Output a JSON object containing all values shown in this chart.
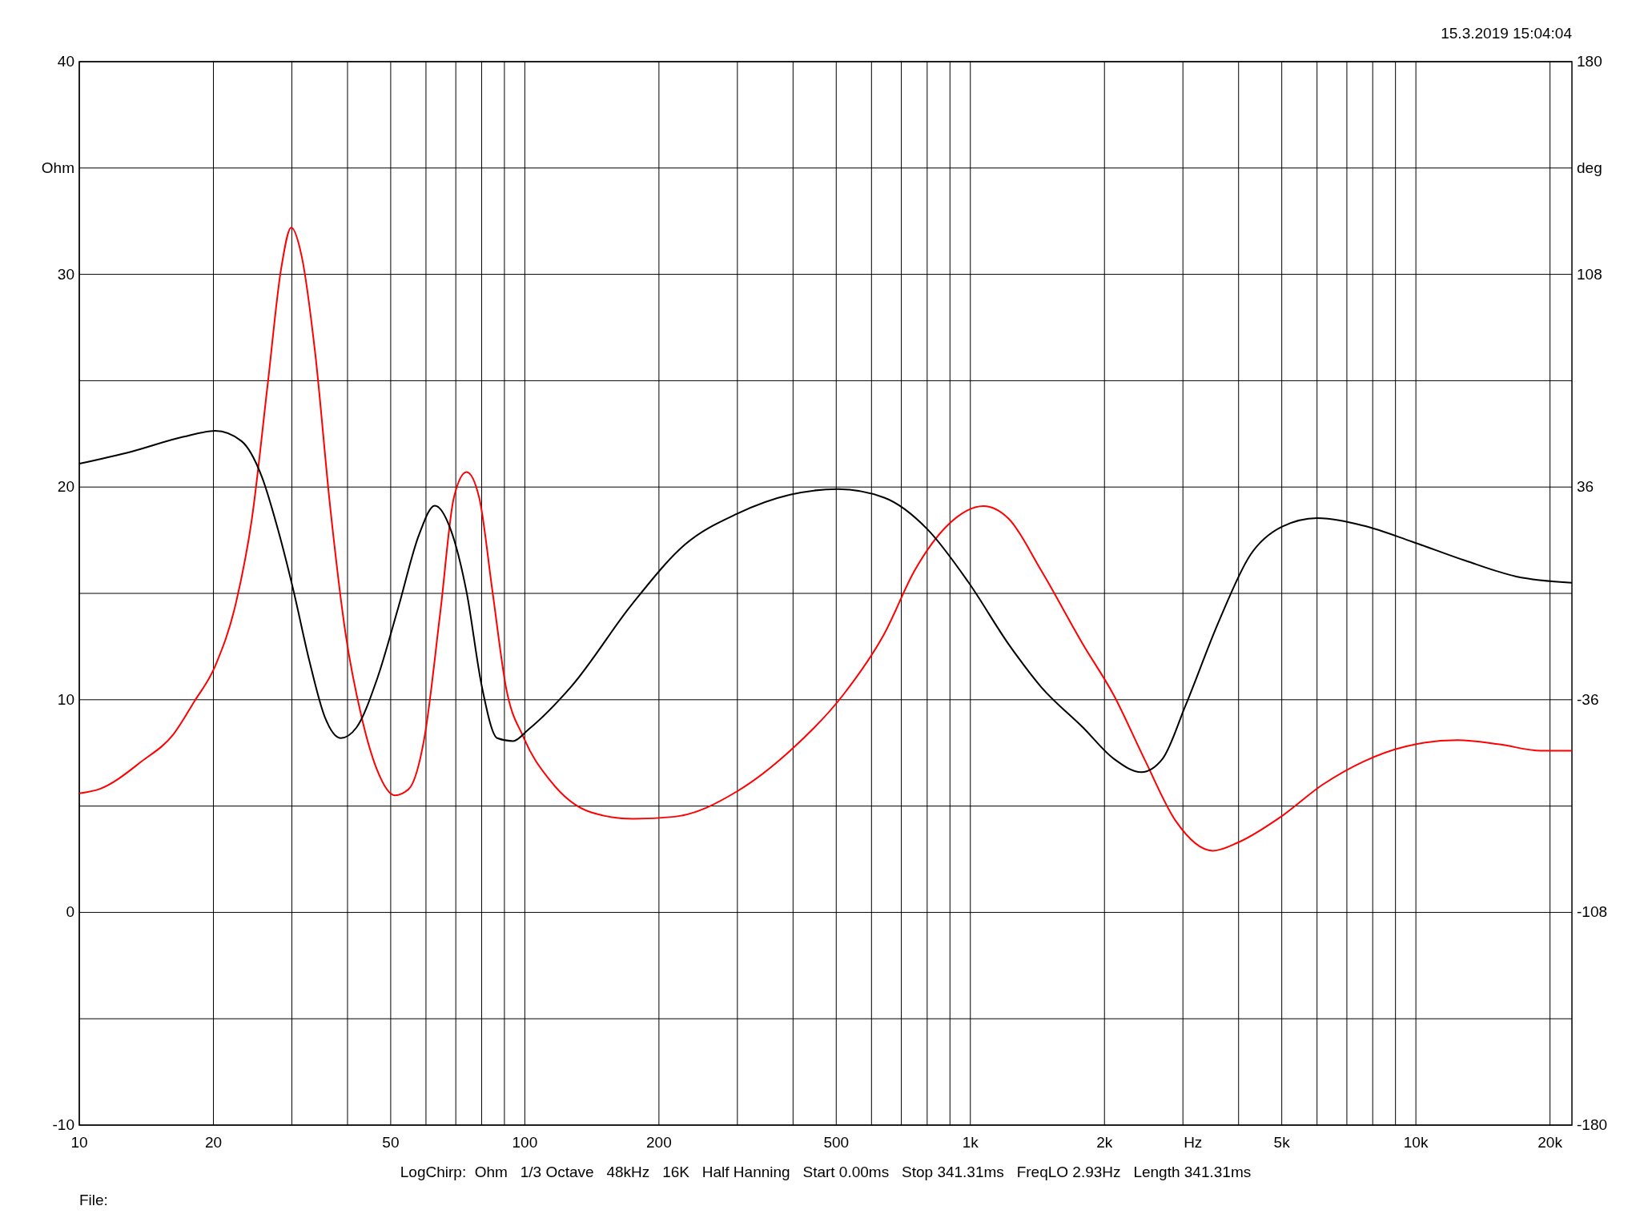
{
  "chart_data": {
    "type": "line",
    "xlabel": "Hz",
    "ylabel": "Ohm",
    "y2label": "deg",
    "log": "x",
    "grid": true,
    "line_style": "solid",
    "xlim": [
      10,
      22400
    ],
    "ylim": [
      -10,
      40
    ],
    "y2lim": [
      -180,
      180
    ],
    "xticks": [
      {
        "value": 10,
        "label": "10"
      },
      {
        "value": 20,
        "label": "20"
      },
      {
        "value": 30,
        "label": null
      },
      {
        "value": 40,
        "label": null
      },
      {
        "value": 50,
        "label": "50"
      },
      {
        "value": 60,
        "label": null
      },
      {
        "value": 70,
        "label": null
      },
      {
        "value": 80,
        "label": null
      },
      {
        "value": 90,
        "label": null
      },
      {
        "value": 100,
        "label": "100"
      },
      {
        "value": 200,
        "label": "200"
      },
      {
        "value": 300,
        "label": null
      },
      {
        "value": 400,
        "label": null
      },
      {
        "value": 500,
        "label": "500"
      },
      {
        "value": 600,
        "label": null
      },
      {
        "value": 700,
        "label": null
      },
      {
        "value": 800,
        "label": null
      },
      {
        "value": 900,
        "label": null
      },
      {
        "value": 1000,
        "label": "1k"
      },
      {
        "value": 2000,
        "label": "2k"
      },
      {
        "value": 3000,
        "label": null
      },
      {
        "value": 4000,
        "label": null
      },
      {
        "value": 5000,
        "label": "5k"
      },
      {
        "value": 6000,
        "label": null
      },
      {
        "value": 7000,
        "label": null
      },
      {
        "value": 8000,
        "label": null
      },
      {
        "value": 9000,
        "label": null
      },
      {
        "value": 10000,
        "label": "10k"
      },
      {
        "value": 20000,
        "label": "20k"
      }
    ],
    "yticks": [
      -10,
      {
        "value": -5,
        "label": null
      },
      0,
      {
        "value": 5,
        "label": null
      },
      10,
      {
        "value": 15,
        "label": null
      },
      20,
      {
        "value": 25,
        "label": null
      },
      30,
      {
        "value": 35,
        "label": null
      },
      40
    ],
    "y2ticks": [
      -180,
      -108,
      -36,
      36,
      108,
      180
    ],
    "series": [
      {
        "color": "#ff0000",
        "x": [
          10,
          11.1,
          13.8,
          16.3,
          18.1,
          20.2,
          22.5,
          24.4,
          26.5,
          28.4,
          29.9,
          31.6,
          33.8,
          36.6,
          39.6,
          43,
          46.6,
          51.1,
          54.9,
          59.5,
          64.6,
          69.3,
          74,
          79,
          84.6,
          90.7,
          99.5,
          114,
          141,
          175,
          217,
          300,
          394,
          517,
          641,
          751,
          889,
          1070,
          1220,
          1440,
          1790,
          2100,
          2460,
          2890,
          3500,
          4000,
          4980,
          6170,
          7640,
          9470,
          12400,
          15400,
          19100,
          22400
        ],
        "values": [
          5.6,
          5.8,
          7.1,
          8.4,
          9.9,
          11.6,
          14.6,
          18.5,
          24.9,
          30.3,
          32.2,
          30.8,
          26.4,
          19,
          13.1,
          9.2,
          6.7,
          5.5,
          5.8,
          8.2,
          14.1,
          19.5,
          20.7,
          19.5,
          15.1,
          10.6,
          8.2,
          6.2,
          4.7,
          4.4,
          4.5,
          5.7,
          7.6,
          10.2,
          13.1,
          16.1,
          18.2,
          19.1,
          18.5,
          16.1,
          12.6,
          10.2,
          7.2,
          4.3,
          2.9,
          3.3,
          4.5,
          6,
          7.1,
          7.8,
          8.1,
          7.9,
          7.6,
          7.6
        ]
      },
      {
        "color": "#000000",
        "axis": "y2",
        "x": [
          10,
          13.1,
          17.1,
          20.2,
          23.1,
          25.7,
          27.9,
          30.3,
          32.8,
          35.6,
          38.6,
          41.9,
          46.6,
          52,
          57.9,
          62.8,
          68.1,
          74,
          80.1,
          86.7,
          94.1,
          102,
          127,
          175,
          229,
          300,
          394,
          505,
          641,
          800,
          990,
          1220,
          1440,
          1790,
          2100,
          2420,
          2700,
          3040,
          3600,
          4250,
          5010,
          6000,
          7640,
          9810,
          12900,
          16800,
          22400
        ],
        "values": [
          43.9,
          48,
          53,
          55,
          51.6,
          39.4,
          21.8,
          0.5,
          -22.5,
          -42,
          -49,
          -45.4,
          -29,
          -4.8,
          19.9,
          29.7,
          21.8,
          0.5,
          -31.6,
          -49,
          -50,
          -46,
          -31.6,
          -3.2,
          16.6,
          27,
          33.4,
          35.3,
          32.4,
          21.8,
          3.8,
          -17.3,
          -31.6,
          -45.4,
          -56,
          -60.5,
          -56,
          -38,
          -10,
          13,
          22.6,
          25.5,
          22.9,
          17.5,
          11.1,
          5.7,
          3.6
        ]
      }
    ],
    "annotations": [
      "15.3.2019 15:04:04",
      "LogChirp:  Ohm   1/3 Octave   48kHz   16K   Half Hanning   Start 0.00ms   Stop 341.31ms   FreqLO 2.93Hz   Length 341.31ms",
      "File:"
    ]
  }
}
